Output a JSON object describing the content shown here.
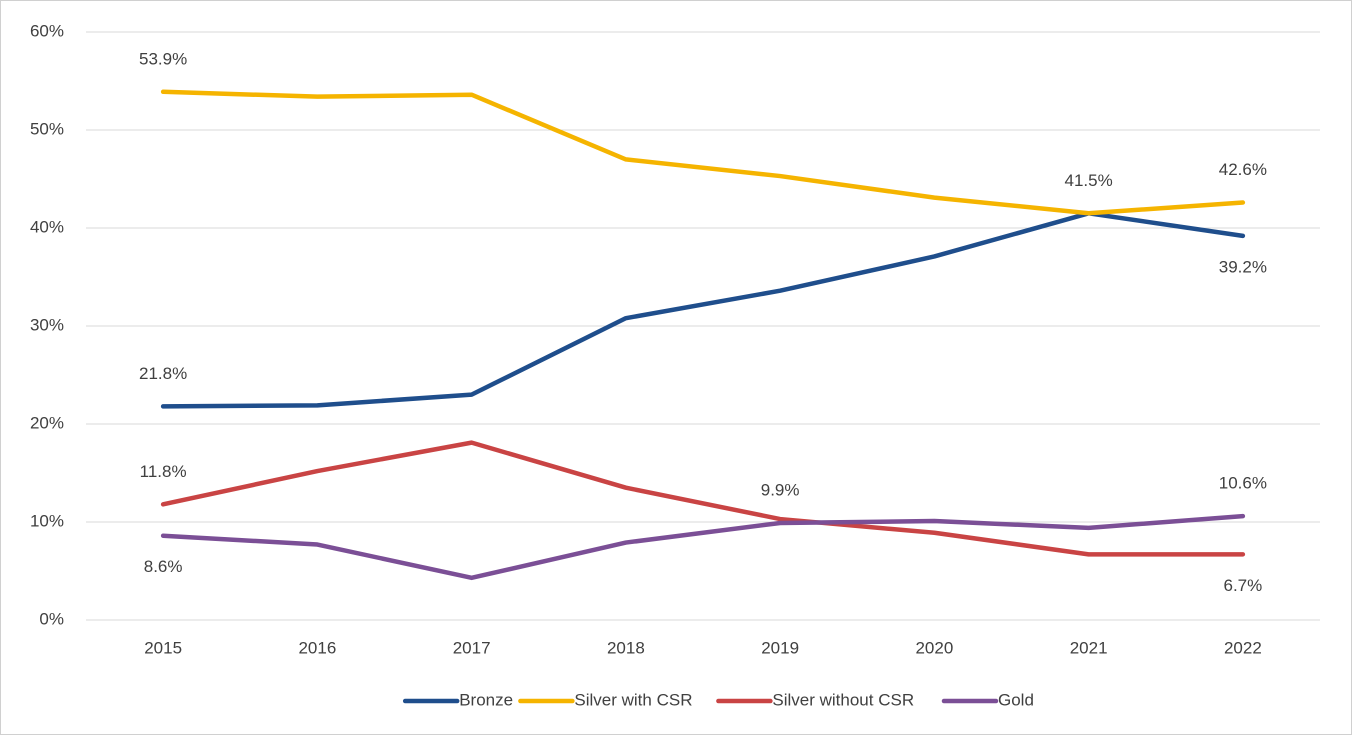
{
  "chart_data": {
    "type": "line",
    "categories": [
      "2015",
      "2016",
      "2017",
      "2018",
      "2019",
      "2020",
      "2021",
      "2022"
    ],
    "series": [
      {
        "name": "Bronze",
        "color": "#1f4e8c",
        "values": [
          21.8,
          21.9,
          23.0,
          30.8,
          33.6,
          37.1,
          41.5,
          39.2
        ],
        "value_labels": [
          "21.8%",
          null,
          null,
          null,
          null,
          null,
          "41.5%",
          "39.2%"
        ]
      },
      {
        "name": "Silver with CSR",
        "color": "#f5b400",
        "values": [
          53.9,
          53.4,
          53.6,
          47.0,
          45.3,
          43.1,
          41.5,
          42.6
        ],
        "value_labels": [
          "53.9%",
          null,
          null,
          null,
          null,
          null,
          null,
          "42.6%"
        ]
      },
      {
        "name": "Silver without CSR",
        "color": "#c94444",
        "values": [
          11.8,
          15.2,
          18.1,
          13.5,
          10.3,
          8.9,
          6.7,
          6.7
        ],
        "value_labels": [
          "11.8%",
          null,
          null,
          null,
          null,
          null,
          null,
          "6.7%"
        ]
      },
      {
        "name": "Gold",
        "color": "#7b4f96",
        "values": [
          8.6,
          7.7,
          4.3,
          7.9,
          9.9,
          10.1,
          9.4,
          10.6
        ],
        "value_labels": [
          "8.6%",
          null,
          null,
          null,
          "9.9%",
          null,
          null,
          "10.6%"
        ]
      }
    ],
    "ylim": [
      0,
      60
    ],
    "yticks": [
      {
        "value": 0,
        "label": "0%"
      },
      {
        "value": 10,
        "label": "10%"
      },
      {
        "value": 20,
        "label": "20%"
      },
      {
        "value": 30,
        "label": "30%"
      },
      {
        "value": 40,
        "label": "40%"
      },
      {
        "value": 50,
        "label": "50%"
      },
      {
        "value": 60,
        "label": "60%"
      }
    ],
    "grid": true,
    "legend": "bottom"
  }
}
